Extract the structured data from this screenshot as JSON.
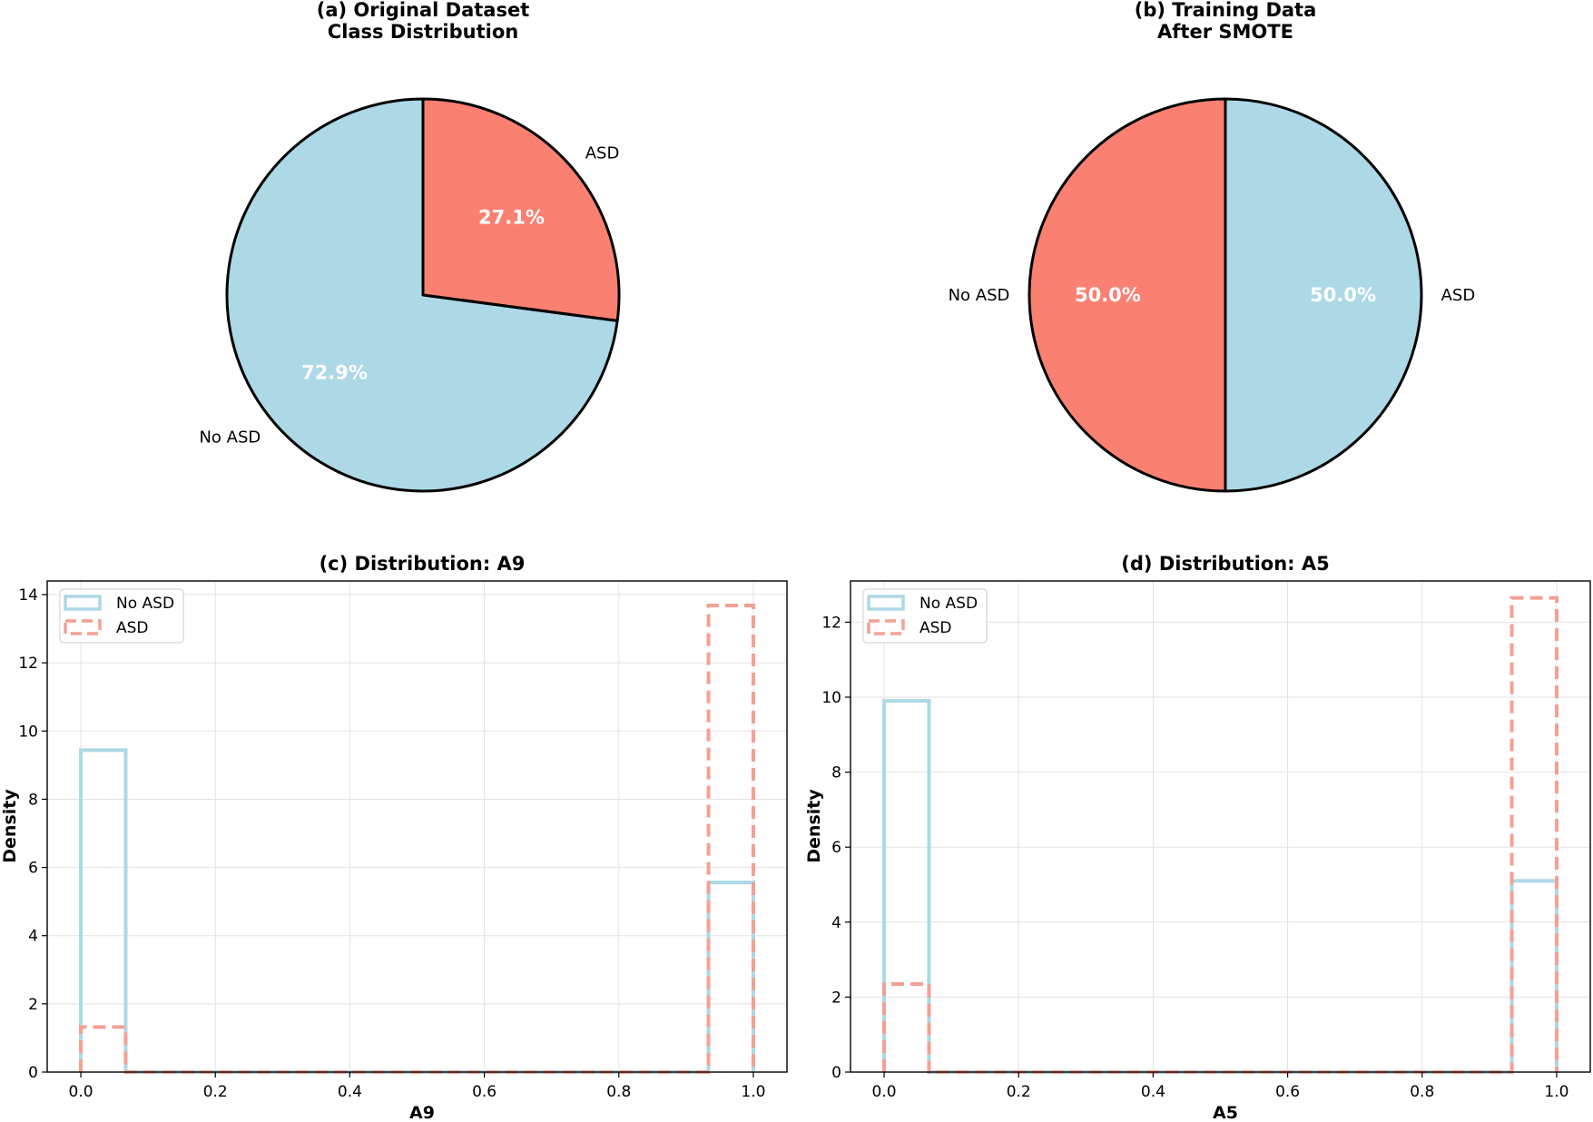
{
  "colors": {
    "no_asd": "#add8e6",
    "asd": "#fa8072",
    "asd_hist": "#f4a093",
    "grid": "#e2e2e2"
  },
  "chart_data": [
    {
      "id": "a",
      "type": "pie",
      "title_lines": [
        "(a) Original Dataset",
        "Class Distribution"
      ],
      "start_angle_deg": 90,
      "counterclock": false,
      "slices": [
        {
          "label": "ASD",
          "value": 27.1,
          "pct_label": "27.1%",
          "color": "#fa8072"
        },
        {
          "label": "No ASD",
          "value": 72.9,
          "pct_label": "72.9%",
          "color": "#add8e6"
        }
      ]
    },
    {
      "id": "b",
      "type": "pie",
      "title_lines": [
        "(b) Training Data",
        "After SMOTE"
      ],
      "start_angle_deg": 90,
      "counterclock": false,
      "slices": [
        {
          "label": "ASD",
          "value": 50.0,
          "pct_label": "50.0%",
          "color": "#add8e6"
        },
        {
          "label": "No ASD",
          "value": 50.0,
          "pct_label": "50.0%",
          "color": "#fa8072"
        }
      ]
    },
    {
      "id": "c",
      "type": "bar",
      "subtype": "step-histogram",
      "title": "(c) Distribution: A9",
      "xlabel": "A9",
      "ylabel": "Density",
      "xlim": [
        -0.05,
        1.05
      ],
      "ylim": [
        0,
        14.4
      ],
      "xticks": [
        0.0,
        0.2,
        0.4,
        0.6,
        0.8,
        1.0
      ],
      "xtick_labels": [
        "0.0",
        "0.2",
        "0.4",
        "0.6",
        "0.8",
        "1.0"
      ],
      "yticks": [
        0,
        2,
        4,
        6,
        8,
        10,
        12,
        14
      ],
      "ytick_labels": [
        "0",
        "2",
        "4",
        "6",
        "8",
        "10",
        "12",
        "14"
      ],
      "grid": true,
      "legend": "top-left",
      "bin_edges": [
        0.0,
        0.0667,
        0.1333,
        0.2,
        0.2667,
        0.3333,
        0.4,
        0.4667,
        0.5333,
        0.6,
        0.6667,
        0.7333,
        0.8,
        0.8667,
        0.9333,
        1.0
      ],
      "series": [
        {
          "name": "No ASD",
          "style": "solid",
          "color": "#add8e6",
          "values": [
            9.44,
            0,
            0,
            0,
            0,
            0,
            0,
            0,
            0,
            0,
            0,
            0,
            0,
            0,
            5.56
          ]
        },
        {
          "name": "ASD",
          "style": "dashed",
          "color": "#f4a093",
          "values": [
            1.32,
            0,
            0,
            0,
            0,
            0,
            0,
            0,
            0,
            0,
            0,
            0,
            0,
            0,
            13.68
          ]
        }
      ]
    },
    {
      "id": "d",
      "type": "bar",
      "subtype": "step-histogram",
      "title": "(d) Distribution: A5",
      "xlabel": "A5",
      "ylabel": "Density",
      "xlim": [
        -0.05,
        1.05
      ],
      "ylim": [
        0,
        13.1
      ],
      "xticks": [
        0.0,
        0.2,
        0.4,
        0.6,
        0.8,
        1.0
      ],
      "xtick_labels": [
        "0.0",
        "0.2",
        "0.4",
        "0.6",
        "0.8",
        "1.0"
      ],
      "yticks": [
        0,
        2,
        4,
        6,
        8,
        10,
        12
      ],
      "ytick_labels": [
        "0",
        "2",
        "4",
        "6",
        "8",
        "10",
        "12"
      ],
      "grid": true,
      "legend": "top-left",
      "bin_edges": [
        0.0,
        0.0667,
        0.1333,
        0.2,
        0.2667,
        0.3333,
        0.4,
        0.4667,
        0.5333,
        0.6,
        0.6667,
        0.7333,
        0.8,
        0.8667,
        0.9333,
        1.0
      ],
      "series": [
        {
          "name": "No ASD",
          "style": "solid",
          "color": "#add8e6",
          "values": [
            9.9,
            0,
            0,
            0,
            0,
            0,
            0,
            0,
            0,
            0,
            0,
            0,
            0,
            0,
            5.1
          ]
        },
        {
          "name": "ASD",
          "style": "dashed",
          "color": "#f4a093",
          "values": [
            2.35,
            0,
            0,
            0,
            0,
            0,
            0,
            0,
            0,
            0,
            0,
            0,
            0,
            0,
            12.65
          ]
        }
      ]
    }
  ]
}
